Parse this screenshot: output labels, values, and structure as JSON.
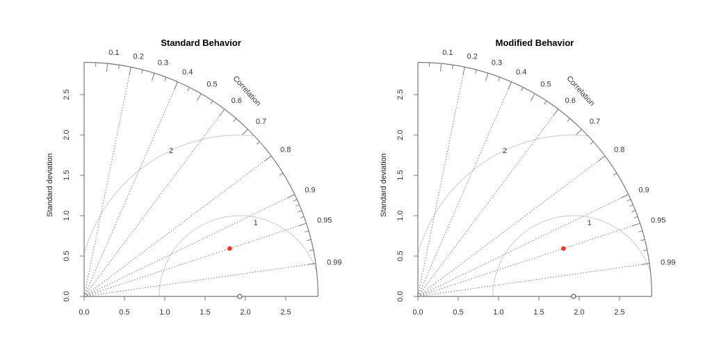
{
  "chart_data": [
    {
      "type": "taylor",
      "title": "Standard Behavior",
      "ylabel": "Standard deviation",
      "corr_axis_label": "Correlation",
      "sd_max": 2.9,
      "sd_ticks": [
        "0.0",
        "0.5",
        "1.0",
        "1.5",
        "2.0",
        "2.5"
      ],
      "sd_arc_labels": [
        "2",
        "1"
      ],
      "correlation_labels": [
        "0.1",
        "0.2",
        "0.3",
        "0.4",
        "0.5",
        "0.6",
        "0.7",
        "0.8",
        "0.9",
        "0.95",
        "0.99"
      ],
      "reference": {
        "sd": 1.93,
        "corr": 1.0,
        "color": "#555555"
      },
      "points": [
        {
          "sd": 1.9,
          "corr": 0.95,
          "color": "#e8382a"
        }
      ],
      "grid": true
    },
    {
      "type": "taylor",
      "title": "Modified Behavior",
      "ylabel": "Standard deviation",
      "corr_axis_label": "Correlation",
      "sd_max": 2.9,
      "sd_ticks": [
        "0.0",
        "0.5",
        "1.0",
        "1.5",
        "2.0",
        "2.5"
      ],
      "sd_arc_labels": [
        "2",
        "1"
      ],
      "correlation_labels": [
        "0.1",
        "0.2",
        "0.3",
        "0.4",
        "0.5",
        "0.6",
        "0.7",
        "0.8",
        "0.9",
        "0.95",
        "0.99"
      ],
      "reference": {
        "sd": 1.93,
        "corr": 1.0,
        "color": "#555555"
      },
      "points": [
        {
          "sd": 1.9,
          "corr": 0.95,
          "color": "#e8382a"
        }
      ],
      "grid": true
    }
  ],
  "colors": {
    "axis": "#777777",
    "grid_arc": "#d2d2d2",
    "ray": "#777777",
    "point": "#e8382a"
  }
}
